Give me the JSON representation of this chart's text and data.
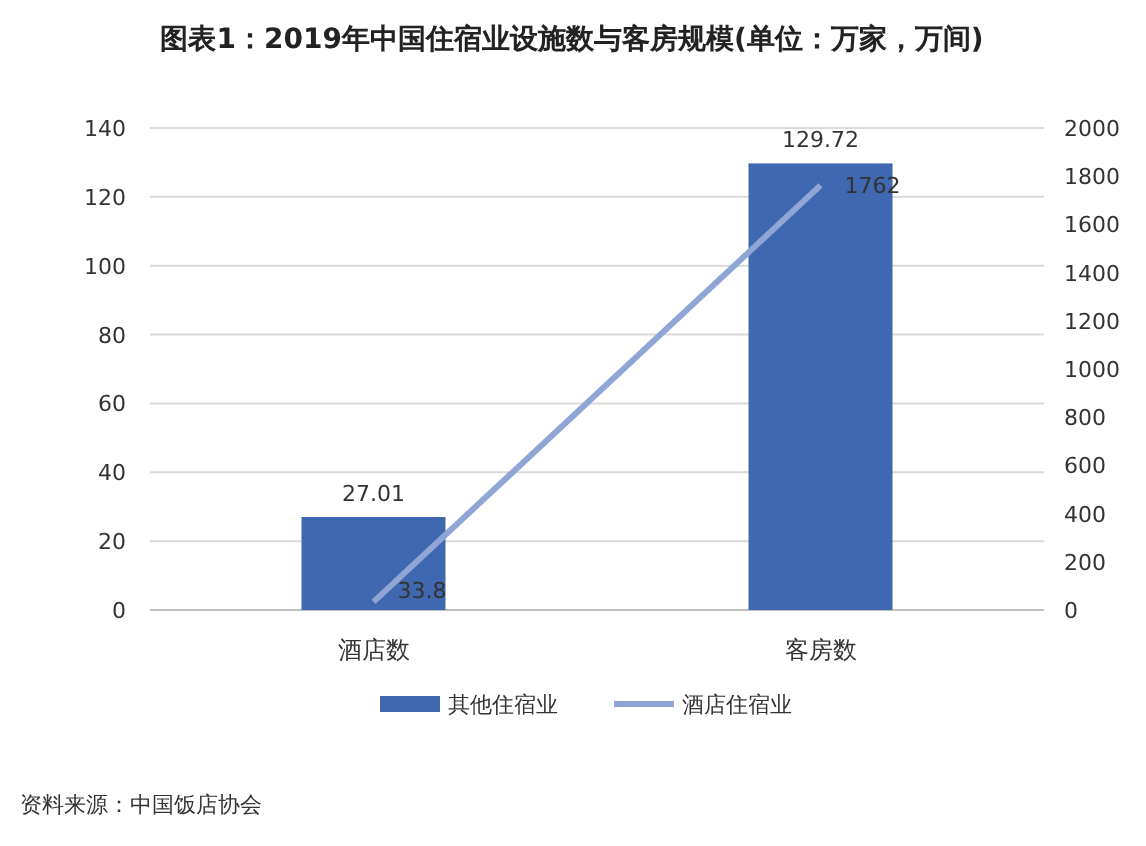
{
  "chart_data": {
    "type": "bar",
    "title": "图表1：2019年中国住宿业设施数与客房规模(单位：万家，万间)",
    "categories": [
      "酒店数",
      "客房数"
    ],
    "series": [
      {
        "name": "其他住宿业",
        "color": "#4068b0",
        "values": [
          27.01,
          129.72
        ]
      },
      {
        "name": "酒店住宿业",
        "type": "line",
        "axis": "y2",
        "color": "#8fa5d6",
        "values": [
          33.8,
          1762
        ]
      }
    ],
    "ylim": [
      0,
      140
    ],
    "yticks": [
      0,
      20,
      40,
      60,
      80,
      100,
      120,
      140
    ],
    "y2lim": [
      0,
      2000
    ],
    "y2ticks": [
      0,
      200,
      400,
      600,
      800,
      1000,
      1200,
      1400,
      1600,
      1800,
      2000
    ],
    "grid": "y",
    "legend": "bottom",
    "data_labels": true,
    "annotations": [
      "资料来源：中国饭店协会"
    ]
  }
}
